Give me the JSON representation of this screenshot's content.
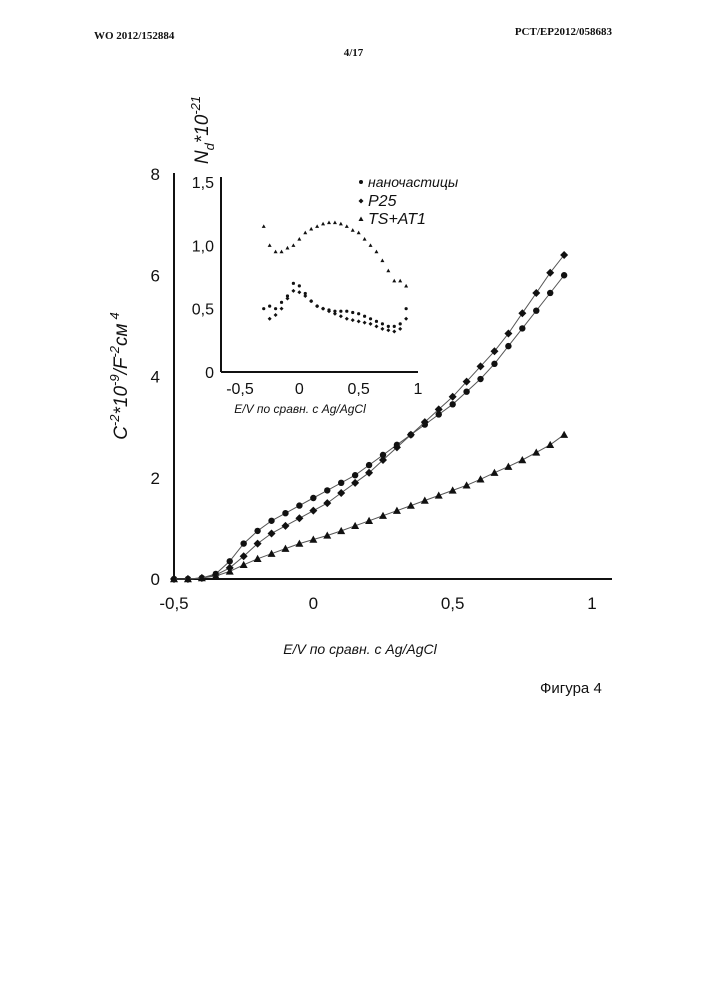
{
  "header": {
    "left": "WO 2012/152884",
    "right": "PCT/EP2012/058683",
    "page": "4/17"
  },
  "figure_caption": "Фигура 4",
  "chart_data": [
    {
      "type": "line",
      "xlabel": "E/V по сравн. с Ag/AgCl",
      "ylabel_parts": {
        "base": "C",
        "exp1": "-2",
        "mid": "*10",
        "exp2": "-9",
        "mid2": "/F",
        "exp3": "-2",
        "tail": "см",
        "exp4": "4"
      },
      "xlim": [
        -0.5,
        1.0
      ],
      "ylim": [
        0,
        8
      ],
      "x_ticks": [
        "-0,5",
        "0",
        "0,5",
        "1"
      ],
      "y_ticks": [
        "0",
        "2",
        "4",
        "6",
        "8"
      ],
      "series": [
        {
          "marker": "circle",
          "x": [
            -0.5,
            -0.45,
            -0.4,
            -0.35,
            -0.3,
            -0.25,
            -0.2,
            -0.15,
            -0.1,
            -0.05,
            0.0,
            0.05,
            0.1,
            0.15,
            0.2,
            0.25,
            0.3,
            0.35,
            0.4,
            0.45,
            0.5,
            0.55,
            0.6,
            0.65,
            0.7,
            0.75,
            0.8,
            0.85,
            0.9
          ],
          "y": [
            0.0,
            0.0,
            0.02,
            0.1,
            0.35,
            0.7,
            0.95,
            1.15,
            1.3,
            1.45,
            1.6,
            1.75,
            1.9,
            2.05,
            2.25,
            2.45,
            2.65,
            2.85,
            3.05,
            3.25,
            3.45,
            3.7,
            3.95,
            4.25,
            4.6,
            4.95,
            5.3,
            5.65,
            6.0
          ]
        },
        {
          "marker": "diamond",
          "x": [
            -0.5,
            -0.45,
            -0.4,
            -0.35,
            -0.3,
            -0.25,
            -0.2,
            -0.15,
            -0.1,
            -0.05,
            0.0,
            0.05,
            0.1,
            0.15,
            0.2,
            0.25,
            0.3,
            0.35,
            0.4,
            0.45,
            0.5,
            0.55,
            0.6,
            0.65,
            0.7,
            0.75,
            0.8,
            0.85,
            0.9
          ],
          "y": [
            0.0,
            0.0,
            0.02,
            0.08,
            0.22,
            0.45,
            0.7,
            0.9,
            1.05,
            1.2,
            1.35,
            1.5,
            1.7,
            1.9,
            2.1,
            2.35,
            2.6,
            2.85,
            3.1,
            3.35,
            3.6,
            3.9,
            4.2,
            4.5,
            4.85,
            5.25,
            5.65,
            6.05,
            6.4
          ]
        },
        {
          "marker": "triangle",
          "x": [
            -0.5,
            -0.45,
            -0.4,
            -0.35,
            -0.3,
            -0.25,
            -0.2,
            -0.15,
            -0.1,
            -0.05,
            0.0,
            0.05,
            0.1,
            0.15,
            0.2,
            0.25,
            0.3,
            0.35,
            0.4,
            0.45,
            0.5,
            0.55,
            0.6,
            0.65,
            0.7,
            0.75,
            0.8,
            0.85,
            0.9
          ],
          "y": [
            0.0,
            0.0,
            0.02,
            0.06,
            0.15,
            0.28,
            0.4,
            0.5,
            0.6,
            0.7,
            0.78,
            0.86,
            0.95,
            1.05,
            1.15,
            1.25,
            1.35,
            1.45,
            1.55,
            1.65,
            1.75,
            1.85,
            1.97,
            2.1,
            2.22,
            2.35,
            2.5,
            2.65,
            2.85
          ]
        }
      ]
    },
    {
      "type": "scatter",
      "ylabel_parts": {
        "base": "N",
        "sub": "d",
        "mid": "*10",
        "exp": "-21"
      },
      "xlabel": "E/V по сравн. с Ag/AgCl",
      "xlim": [
        -0.5,
        1.0
      ],
      "ylim": [
        0,
        1.5
      ],
      "x_ticks": [
        "-0,5",
        "0",
        "0,5",
        "1"
      ],
      "y_ticks": [
        "0",
        "0,5",
        "1,0",
        "1,5"
      ],
      "legend": {
        "position": "top-right",
        "entries": [
          {
            "marker": "circle",
            "label": "наночастицы"
          },
          {
            "marker": "diamond",
            "label": "P25"
          },
          {
            "marker": "triangle",
            "label": "TS+AT1"
          }
        ]
      },
      "series": [
        {
          "marker": "circle",
          "x": [
            -0.3,
            -0.25,
            -0.2,
            -0.15,
            -0.1,
            -0.05,
            0.0,
            0.05,
            0.1,
            0.15,
            0.2,
            0.25,
            0.3,
            0.35,
            0.4,
            0.45,
            0.5,
            0.55,
            0.6,
            0.65,
            0.7,
            0.75,
            0.8,
            0.85,
            0.9
          ],
          "y": [
            0.5,
            0.52,
            0.5,
            0.55,
            0.6,
            0.7,
            0.68,
            0.62,
            0.56,
            0.52,
            0.5,
            0.49,
            0.48,
            0.48,
            0.48,
            0.47,
            0.46,
            0.44,
            0.42,
            0.4,
            0.38,
            0.36,
            0.36,
            0.38,
            0.5
          ]
        },
        {
          "marker": "diamond",
          "x": [
            -0.25,
            -0.2,
            -0.15,
            -0.1,
            -0.05,
            0.0,
            0.05,
            0.1,
            0.15,
            0.2,
            0.25,
            0.3,
            0.35,
            0.4,
            0.45,
            0.5,
            0.55,
            0.6,
            0.65,
            0.7,
            0.75,
            0.8,
            0.85,
            0.9
          ],
          "y": [
            0.42,
            0.45,
            0.5,
            0.58,
            0.64,
            0.63,
            0.6,
            0.56,
            0.52,
            0.5,
            0.48,
            0.46,
            0.44,
            0.42,
            0.41,
            0.4,
            0.39,
            0.38,
            0.36,
            0.34,
            0.33,
            0.32,
            0.34,
            0.42
          ]
        },
        {
          "marker": "triangle",
          "x": [
            -0.3,
            -0.25,
            -0.2,
            -0.15,
            -0.1,
            -0.05,
            0.0,
            0.05,
            0.1,
            0.15,
            0.2,
            0.25,
            0.3,
            0.35,
            0.4,
            0.45,
            0.5,
            0.55,
            0.6,
            0.65,
            0.7,
            0.75,
            0.8,
            0.85,
            0.9
          ],
          "y": [
            1.15,
            1.0,
            0.95,
            0.95,
            0.98,
            1.0,
            1.05,
            1.1,
            1.13,
            1.15,
            1.17,
            1.18,
            1.18,
            1.17,
            1.15,
            1.12,
            1.1,
            1.05,
            1.0,
            0.95,
            0.88,
            0.8,
            0.72,
            0.72,
            0.68
          ]
        }
      ]
    }
  ]
}
